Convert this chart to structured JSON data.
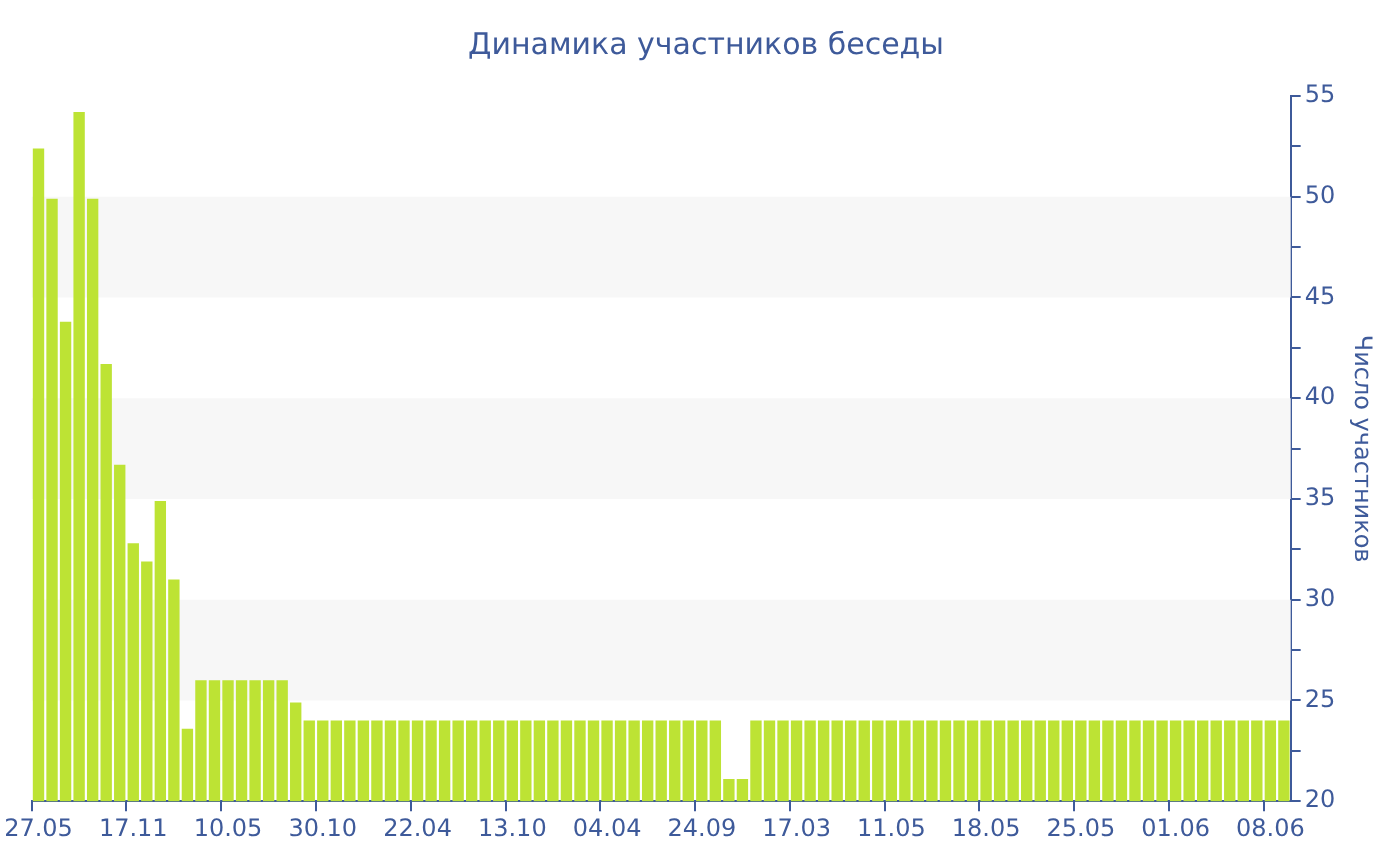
{
  "chart_data": {
    "type": "bar",
    "title": "Динамика участников беседы",
    "ylabel": "Число участников",
    "categories": [
      "27.05",
      null,
      null,
      null,
      null,
      null,
      null,
      "17.11",
      null,
      null,
      null,
      null,
      null,
      null,
      "10.05",
      null,
      null,
      null,
      null,
      null,
      null,
      "30.10",
      null,
      null,
      null,
      null,
      null,
      null,
      "22.04",
      null,
      null,
      null,
      null,
      null,
      null,
      "13.10",
      null,
      null,
      null,
      null,
      null,
      null,
      "04.04",
      null,
      null,
      null,
      null,
      null,
      null,
      "24.09",
      null,
      null,
      null,
      null,
      null,
      null,
      "17.03",
      null,
      null,
      null,
      null,
      null,
      null,
      "11.05",
      null,
      null,
      null,
      null,
      null,
      null,
      "18.05",
      null,
      null,
      null,
      null,
      null,
      null,
      "25.05",
      null,
      null,
      null,
      null,
      null,
      null,
      "01.06",
      null,
      null,
      null,
      null,
      null,
      null,
      "08.06",
      null
    ],
    "values": [
      52.4,
      49.9,
      43.8,
      54.2,
      49.9,
      41.7,
      36.7,
      32.8,
      31.9,
      34.9,
      31.0,
      23.6,
      26,
      26,
      26,
      26,
      26,
      26,
      26,
      24.9,
      24,
      24,
      24,
      24,
      24,
      24,
      24,
      24,
      24,
      24,
      24,
      24,
      24,
      24,
      24,
      24,
      24,
      24,
      24,
      24,
      24,
      24,
      24,
      24,
      24,
      24,
      24,
      24,
      24,
      24,
      24,
      21.1,
      21.1,
      24,
      24,
      24,
      24,
      24,
      24,
      24,
      24,
      24,
      24,
      24,
      24,
      24,
      24,
      24,
      24,
      24,
      24,
      24,
      24,
      24,
      24,
      24,
      24,
      24,
      24,
      24,
      24,
      24,
      24,
      24,
      24,
      24,
      24,
      24,
      24,
      24,
      24,
      24,
      24
    ],
    "color": "#bde334",
    "ylim": [
      20,
      55
    ],
    "yticks": [
      20,
      {
        "value": 22.5,
        "label": null
      },
      25,
      {
        "value": 27.5,
        "label": null
      },
      30,
      {
        "value": 32.5,
        "label": null
      },
      35,
      {
        "value": 37.5,
        "label": null
      },
      40,
      {
        "value": 42.5,
        "label": null
      },
      45,
      {
        "value": 47.5,
        "label": null
      },
      50,
      {
        "value": 52.5,
        "label": null
      },
      55
    ],
    "bands": [
      {
        "axis": "y",
        "from": 25,
        "to": 30,
        "color": "#f7f7f7"
      },
      {
        "axis": "y",
        "from": 35,
        "to": 40,
        "color": "#f7f7f7"
      },
      {
        "axis": "y",
        "from": 45,
        "to": 50,
        "color": "#f7f7f7"
      }
    ],
    "grid": false
  }
}
